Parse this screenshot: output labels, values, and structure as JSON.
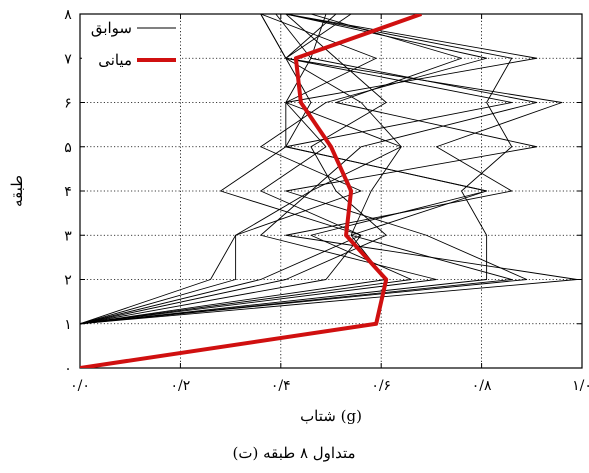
{
  "chart_data": {
    "type": "line",
    "caption": "(ت) متداول ۸ طبقه",
    "xlabel": "شتاب (g)",
    "ylabel": "طبقه",
    "xlim": [
      0,
      1
    ],
    "ylim": [
      0,
      8
    ],
    "xticks": [
      0,
      0.2,
      0.4,
      0.6,
      0.8,
      1.0
    ],
    "xtick_labels": [
      "۰/۰",
      "۰/۲",
      "۰/۴",
      "۰/۶",
      "۰/۸",
      "۱/۰"
    ],
    "yticks": [
      0,
      1,
      2,
      3,
      4,
      5,
      6,
      7,
      8
    ],
    "ytick_labels": [
      "۰",
      "۱",
      "۲",
      "۳",
      "۴",
      "۵",
      "۶",
      "۷",
      "۸"
    ],
    "grid": true,
    "legend": {
      "position": "top-left",
      "entries": [
        {
          "label": "سوابق",
          "color": "#000000"
        },
        {
          "label": "میانی",
          "color": "#d01010"
        }
      ]
    },
    "records": [
      [
        0,
        1,
        0.81,
        2,
        0.81,
        3,
        0.76,
        4,
        0.86,
        5,
        0.81,
        6,
        0.86,
        7,
        0.41,
        8,
        0.59
      ],
      [
        0,
        1,
        0.86,
        2,
        0.54,
        3,
        0.81,
        4,
        0.41,
        5,
        0.86,
        6,
        0.41,
        7,
        0.54,
        8,
        0.64
      ],
      [
        0,
        1,
        0.26,
        2,
        0.31,
        3,
        0.56,
        4,
        0.36,
        5,
        0.49,
        6,
        0.81,
        7,
        0.41,
        8,
        0.69
      ],
      [
        0,
        1,
        0.71,
        2,
        0.36,
        3,
        0.46,
        4,
        0.64,
        5,
        0.41,
        6,
        0.91,
        7,
        0.41,
        8,
        0.76
      ],
      [
        0,
        1,
        0.49,
        2,
        0.56,
        3,
        0.36,
        4,
        0.49,
        5,
        0.41,
        6,
        0.59,
        7,
        0.36,
        8,
        0.81
      ],
      [
        0,
        1,
        0.99,
        2,
        0.41,
        3,
        0.86,
        4,
        0.71,
        5,
        0.96,
        6,
        0.41,
        7,
        0.36,
        8,
        0.86
      ],
      [
        0,
        1,
        0.31,
        2,
        0.31,
        3,
        0.46,
        4,
        0.56,
        5,
        0.91,
        6,
        0.46,
        7,
        0.49,
        8,
        0.91
      ],
      [
        0,
        1,
        0.66,
        2,
        0.46,
        3,
        0.81,
        4,
        0.41,
        5,
        0.46,
        6,
        0.41,
        7,
        0.36,
        8,
        0.96
      ],
      [
        0,
        1,
        0.36,
        2,
        0.56,
        3,
        0.28,
        4,
        0.41,
        5,
        0.41,
        6,
        0.46,
        7,
        0.39,
        8,
        0.49
      ],
      [
        0,
        1,
        0.41,
        2,
        0.61,
        3,
        0.51,
        4,
        0.46,
        5,
        0.61,
        6,
        0.51,
        7,
        0.41,
        8,
        0.76
      ],
      [
        0,
        1,
        0.61,
        2,
        0.54,
        3,
        0.58,
        4,
        0.64,
        5,
        0.56,
        6,
        0.41,
        7,
        0.51,
        8,
        0.66
      ],
      [
        0,
        1,
        0.89,
        2,
        0.69,
        3,
        0.41,
        4,
        0.91,
        5,
        0.51,
        6,
        0.76,
        7,
        0.46,
        8,
        0.56
      ]
    ],
    "median": [
      [
        0.0,
        0
      ],
      [
        0.59,
        1
      ],
      [
        0.61,
        2
      ],
      [
        0.53,
        3
      ],
      [
        0.54,
        4
      ],
      [
        0.5,
        5
      ],
      [
        0.44,
        6
      ],
      [
        0.43,
        7
      ],
      [
        0.68,
        8
      ]
    ]
  }
}
